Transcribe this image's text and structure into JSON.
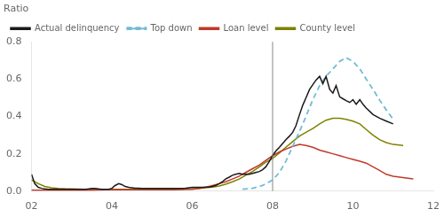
{
  "chart_data": {
    "type": "line",
    "title": "",
    "ylabel": "Ratio",
    "xlim": [
      2002,
      2012
    ],
    "ylim": [
      0,
      0.8
    ],
    "xticks": [
      {
        "value": 2002,
        "label": "02"
      },
      {
        "value": 2004,
        "label": "04"
      },
      {
        "value": 2006,
        "label": "06"
      },
      {
        "value": 2008,
        "label": "08"
      },
      {
        "value": 2010,
        "label": "10"
      },
      {
        "value": 2012,
        "label": "12"
      }
    ],
    "yticks": [
      {
        "value": 0,
        "label": "0.0"
      },
      0.2,
      0.4,
      0.6,
      0.8
    ],
    "vline_x": 2008,
    "grid": false,
    "legend": "upper left",
    "series": [
      {
        "name": "Actual delinquency",
        "color": "#1a1a1a",
        "line_style": "solid",
        "x": [
          2002.0,
          2002.08,
          2002.17,
          2002.25,
          2002.33,
          2002.42,
          2002.5,
          2002.58,
          2002.67,
          2002.75,
          2002.83,
          2002.92,
          2003.0,
          2003.08,
          2003.17,
          2003.25,
          2003.33,
          2003.42,
          2003.5,
          2003.58,
          2003.67,
          2003.75,
          2003.83,
          2003.92,
          2004.0,
          2004.08,
          2004.17,
          2004.25,
          2004.33,
          2004.42,
          2004.5,
          2004.58,
          2004.67,
          2004.75,
          2004.83,
          2004.92,
          2005.0,
          2005.08,
          2005.17,
          2005.25,
          2005.33,
          2005.42,
          2005.5,
          2005.58,
          2005.67,
          2005.75,
          2005.83,
          2005.92,
          2006.0,
          2006.08,
          2006.17,
          2006.25,
          2006.33,
          2006.42,
          2006.5,
          2006.58,
          2006.67,
          2006.75,
          2006.83,
          2006.92,
          2007.0,
          2007.08,
          2007.17,
          2007.25,
          2007.33,
          2007.42,
          2007.5,
          2007.58,
          2007.67,
          2007.75,
          2007.83,
          2007.92,
          2008.0,
          2008.08,
          2008.17,
          2008.25,
          2008.33,
          2008.42,
          2008.5,
          2008.58,
          2008.67,
          2008.75,
          2008.83,
          2008.92,
          2009.0,
          2009.08,
          2009.17,
          2009.25,
          2009.33,
          2009.42,
          2009.5,
          2009.58,
          2009.67,
          2009.75,
          2009.83,
          2009.92,
          2010.0,
          2010.08,
          2010.17,
          2010.25,
          2010.33,
          2010.5,
          2010.67,
          2010.83,
          2011.0
        ],
        "values": [
          0.09,
          0.04,
          0.02,
          0.015,
          0.012,
          0.01,
          0.01,
          0.01,
          0.01,
          0.01,
          0.01,
          0.01,
          0.01,
          0.01,
          0.01,
          0.01,
          0.01,
          0.012,
          0.015,
          0.015,
          0.012,
          0.01,
          0.01,
          0.01,
          0.015,
          0.03,
          0.04,
          0.035,
          0.025,
          0.02,
          0.018,
          0.016,
          0.016,
          0.015,
          0.015,
          0.015,
          0.015,
          0.015,
          0.015,
          0.015,
          0.015,
          0.015,
          0.015,
          0.015,
          0.015,
          0.015,
          0.016,
          0.018,
          0.02,
          0.02,
          0.02,
          0.02,
          0.022,
          0.022,
          0.025,
          0.03,
          0.04,
          0.05,
          0.065,
          0.075,
          0.085,
          0.09,
          0.095,
          0.09,
          0.092,
          0.09,
          0.095,
          0.1,
          0.105,
          0.115,
          0.13,
          0.16,
          0.19,
          0.215,
          0.235,
          0.255,
          0.275,
          0.295,
          0.315,
          0.35,
          0.41,
          0.46,
          0.5,
          0.545,
          0.57,
          0.595,
          0.615,
          0.575,
          0.615,
          0.545,
          0.525,
          0.565,
          0.505,
          0.495,
          0.485,
          0.475,
          0.49,
          0.465,
          0.49,
          0.465,
          0.445,
          0.41,
          0.39,
          0.375,
          0.36
        ]
      },
      {
        "name": "Top down",
        "color": "#72bcd4",
        "line_style": "dashed",
        "x": [
          2007.25,
          2007.5,
          2007.75,
          2008.0,
          2008.17,
          2008.33,
          2008.5,
          2008.67,
          2008.83,
          2009.0,
          2009.17,
          2009.33,
          2009.5,
          2009.67,
          2009.83,
          2010.0,
          2010.17,
          2010.33,
          2010.5,
          2010.67,
          2010.83,
          2011.0
        ],
        "values": [
          0.01,
          0.015,
          0.03,
          0.06,
          0.1,
          0.16,
          0.24,
          0.32,
          0.4,
          0.49,
          0.565,
          0.615,
          0.655,
          0.695,
          0.715,
          0.695,
          0.655,
          0.6,
          0.545,
          0.485,
          0.435,
          0.385
        ]
      },
      {
        "name": "Loan level",
        "color": "#c0392b",
        "line_style": "solid",
        "x": [
          2002.0,
          2002.5,
          2003.0,
          2003.5,
          2004.0,
          2004.5,
          2005.0,
          2005.5,
          2006.0,
          2006.17,
          2006.33,
          2006.5,
          2006.67,
          2006.83,
          2007.0,
          2007.17,
          2007.33,
          2007.5,
          2007.67,
          2007.83,
          2008.0,
          2008.17,
          2008.33,
          2008.5,
          2008.67,
          2008.83,
          2009.0,
          2009.17,
          2009.33,
          2009.5,
          2009.67,
          2009.83,
          2010.0,
          2010.17,
          2010.33,
          2010.5,
          2010.67,
          2010.83,
          2011.0,
          2011.33,
          2011.5
        ],
        "values": [
          0.005,
          0.005,
          0.005,
          0.005,
          0.008,
          0.007,
          0.007,
          0.007,
          0.01,
          0.015,
          0.02,
          0.03,
          0.04,
          0.05,
          0.065,
          0.08,
          0.1,
          0.12,
          0.14,
          0.165,
          0.19,
          0.21,
          0.225,
          0.24,
          0.25,
          0.245,
          0.235,
          0.22,
          0.21,
          0.2,
          0.19,
          0.18,
          0.17,
          0.16,
          0.15,
          0.13,
          0.11,
          0.09,
          0.08,
          0.07,
          0.065
        ]
      },
      {
        "name": "County level",
        "color": "#808000",
        "line_style": "solid",
        "x": [
          2002.0,
          2002.17,
          2002.33,
          2002.5,
          2002.67,
          2002.83,
          2003.0,
          2003.17,
          2003.33,
          2003.5,
          2003.67,
          2003.83,
          2004.0,
          2004.17,
          2004.33,
          2004.5,
          2004.67,
          2004.83,
          2005.0,
          2005.17,
          2005.33,
          2005.5,
          2005.67,
          2005.83,
          2006.0,
          2006.17,
          2006.33,
          2006.5,
          2006.67,
          2006.83,
          2007.0,
          2007.17,
          2007.33,
          2007.5,
          2007.67,
          2007.83,
          2008.0,
          2008.17,
          2008.33,
          2008.5,
          2008.67,
          2008.83,
          2009.0,
          2009.17,
          2009.33,
          2009.5,
          2009.67,
          2009.83,
          2010.0,
          2010.17,
          2010.33,
          2010.5,
          2010.67,
          2010.83,
          2011.0,
          2011.25
        ],
        "values": [
          0.06,
          0.04,
          0.025,
          0.018,
          0.015,
          0.013,
          0.012,
          0.011,
          0.01,
          0.01,
          0.01,
          0.01,
          0.01,
          0.01,
          0.01,
          0.01,
          0.01,
          0.01,
          0.01,
          0.01,
          0.01,
          0.01,
          0.011,
          0.012,
          0.013,
          0.015,
          0.018,
          0.022,
          0.028,
          0.037,
          0.05,
          0.065,
          0.085,
          0.105,
          0.13,
          0.155,
          0.175,
          0.205,
          0.235,
          0.265,
          0.295,
          0.315,
          0.335,
          0.36,
          0.38,
          0.39,
          0.39,
          0.385,
          0.375,
          0.36,
          0.33,
          0.3,
          0.275,
          0.26,
          0.25,
          0.245
        ]
      }
    ]
  }
}
